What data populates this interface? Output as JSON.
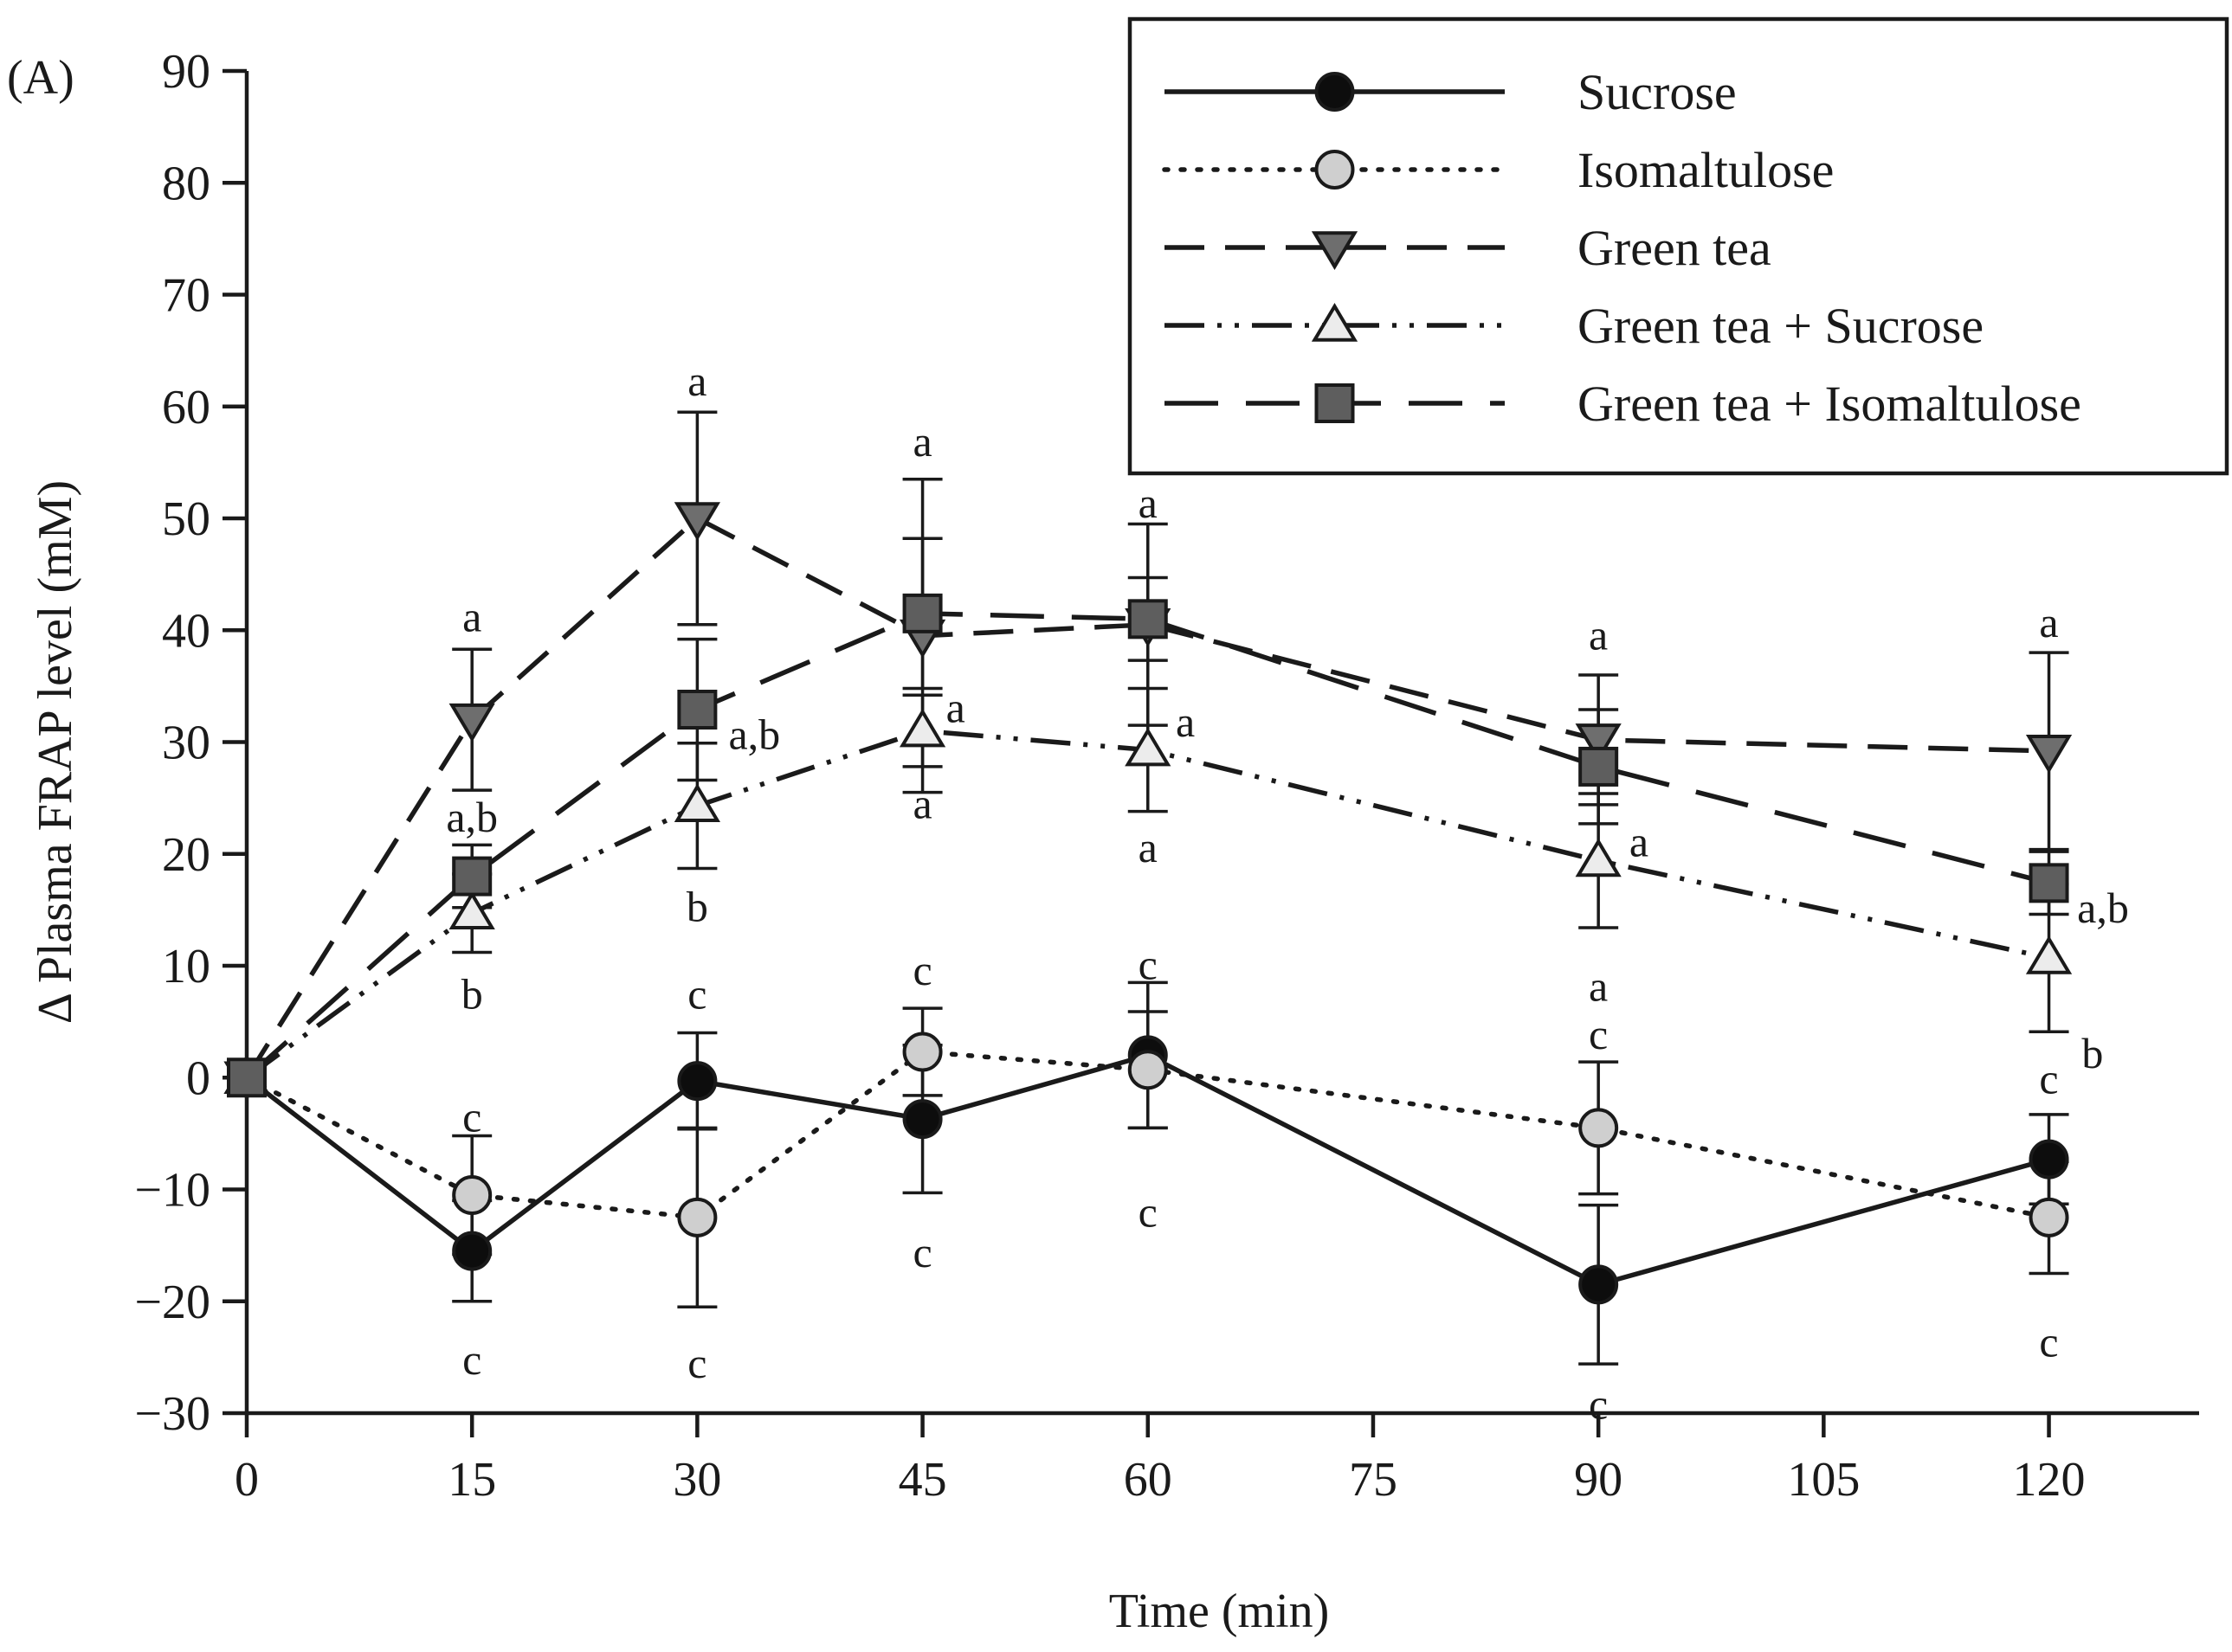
{
  "chart_data": {
    "type": "line",
    "panel_label": "(A)",
    "xlabel": "Time (min)",
    "ylabel": "Δ Plasma FRAP level (mM)",
    "xlim": [
      0,
      130
    ],
    "ylim": [
      -30,
      90
    ],
    "x_ticks": [
      0,
      15,
      30,
      45,
      60,
      75,
      90,
      105,
      120
    ],
    "x_tick_labels": [
      "0",
      "15",
      "30",
      "45",
      "60",
      "75",
      "90",
      "105",
      "120"
    ],
    "y_ticks": [
      -30,
      -20,
      -10,
      0,
      10,
      20,
      30,
      40,
      50,
      60,
      70,
      80,
      90
    ],
    "y_tick_labels": [
      "−30",
      "−20",
      "−10",
      "0",
      "10",
      "20",
      "30",
      "40",
      "50",
      "60",
      "70",
      "80",
      "90"
    ],
    "grid": false,
    "legend_position": "top-right",
    "colors": {
      "axis": "#1a1a1a",
      "black_marker": "#0d0d0d",
      "light_marker": "#cfcfcf",
      "dark_marker": "#6e6e6e",
      "white_marker": "#ececec",
      "square_marker": "#5e5e5e"
    },
    "series": [
      {
        "name": "Sucrose",
        "marker": "circle",
        "fill": "#0d0d0d",
        "dash": "solid",
        "x": [
          0,
          15,
          30,
          45,
          60,
          90,
          120
        ],
        "y": [
          0,
          -15.5,
          -0.3,
          -3.7,
          2,
          -18.5,
          -7.3
        ],
        "error": [
          0,
          4.5,
          4.3,
          6.6,
          6.5,
          7.1,
          4
        ]
      },
      {
        "name": "Isomaltulose",
        "marker": "circle",
        "fill": "#cfcfcf",
        "dash": "dotted",
        "x": [
          0,
          15,
          30,
          45,
          60,
          90,
          120
        ],
        "y": [
          0,
          -10.5,
          -12.5,
          2.3,
          0.7,
          -4.5,
          -12.5
        ],
        "error": [
          0,
          5.3,
          8,
          3.9,
          5.2,
          5.9,
          5
        ]
      },
      {
        "name": "Green tea",
        "marker": "triangle-down",
        "fill": "#6e6e6e",
        "dash": "dashed",
        "x": [
          0,
          15,
          30,
          45,
          60,
          90,
          120
        ],
        "y": [
          0,
          32,
          50,
          39.5,
          40.5,
          30.2,
          29.2
        ],
        "error": [
          0,
          6.3,
          9.5,
          14,
          9,
          5.8,
          8.8
        ]
      },
      {
        "name": "Green tea + Sucrose",
        "marker": "triangle-up",
        "fill": "#ececec",
        "dash": "dash-dot-dot",
        "x": [
          0,
          15,
          30,
          45,
          60,
          90,
          120
        ],
        "y": [
          0,
          14.7,
          24.3,
          31,
          29.3,
          19.4,
          10.7
        ],
        "error": [
          0,
          3.5,
          5.6,
          3.2,
          5.5,
          6,
          6.6
        ]
      },
      {
        "name": "Green tea + Isomaltulose",
        "marker": "square",
        "fill": "#5e5e5e",
        "dash": "long-dash",
        "x": [
          0,
          15,
          30,
          45,
          60,
          90,
          120
        ],
        "y": [
          0,
          18,
          32.9,
          41.5,
          41,
          27.8,
          17.4
        ],
        "error": [
          0,
          2.8,
          6.3,
          6.7,
          3.7,
          5.1,
          2.8
        ]
      }
    ],
    "annotations": [
      {
        "text": "a",
        "x": 15,
        "y": 41.2
      },
      {
        "text": "a,b",
        "x": 15,
        "y": 23.3
      },
      {
        "text": "b",
        "x": 15,
        "y": 7.5
      },
      {
        "text": "c",
        "x": 15,
        "y": -3.5
      },
      {
        "text": "c",
        "x": 15,
        "y": -25.2
      },
      {
        "text": "a",
        "x": 30,
        "y": 62.3
      },
      {
        "text": "a,b",
        "x": 33.8,
        "y": 30.7
      },
      {
        "text": "b",
        "x": 30,
        "y": 15.3
      },
      {
        "text": "c",
        "x": 30,
        "y": 7.5
      },
      {
        "text": "c",
        "x": 30,
        "y": -25.5
      },
      {
        "text": "a",
        "x": 45,
        "y": 56.9
      },
      {
        "text": "a",
        "x": 47.2,
        "y": 33.1
      },
      {
        "text": "a",
        "x": 45,
        "y": 24.5
      },
      {
        "text": "c",
        "x": 45,
        "y": 9.6
      },
      {
        "text": "c",
        "x": 45,
        "y": -15.6
      },
      {
        "text": "a",
        "x": 60,
        "y": 51.4
      },
      {
        "text": "a",
        "x": 62.5,
        "y": 31.8
      },
      {
        "text": "a",
        "x": 60,
        "y": 20.6
      },
      {
        "text": "c",
        "x": 60,
        "y": 10.1
      },
      {
        "text": "c",
        "x": 60,
        "y": -12
      },
      {
        "text": "a",
        "x": 90,
        "y": 39.6
      },
      {
        "text": "a",
        "x": 92.7,
        "y": 21.1
      },
      {
        "text": "a",
        "x": 90,
        "y": 8.2
      },
      {
        "text": "c",
        "x": 90,
        "y": 3.9
      },
      {
        "text": "c",
        "x": 90,
        "y": -29.2
      },
      {
        "text": "a",
        "x": 120,
        "y": 40.7
      },
      {
        "text": "a,b",
        "x": 123.6,
        "y": 15.2
      },
      {
        "text": "b",
        "x": 122.9,
        "y": 2.2
      },
      {
        "text": "c",
        "x": 120,
        "y": -0.1
      },
      {
        "text": "c",
        "x": 120,
        "y": -23.6
      }
    ]
  }
}
